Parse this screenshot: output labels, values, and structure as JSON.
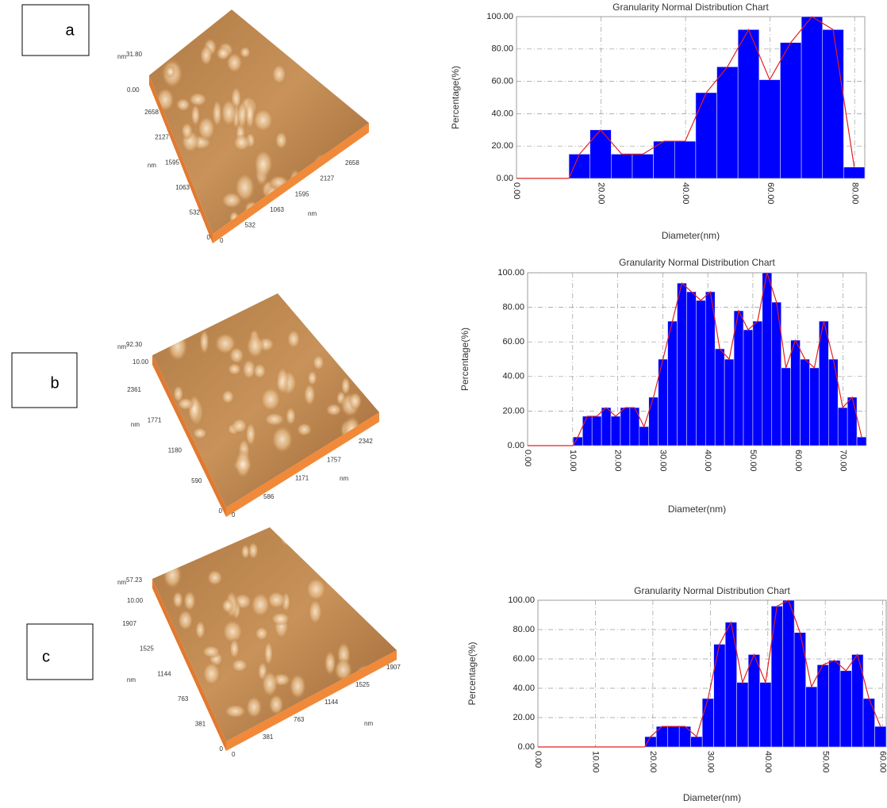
{
  "panels": [
    {
      "label": "a",
      "afm": {
        "z_unit": "nm",
        "z_max": "31.80",
        "z_min": "0.00",
        "y_ticks": [
          "2658",
          "2127",
          "1595",
          "1063",
          "532",
          "0"
        ],
        "y_unit": "nm",
        "x_ticks": [
          "0",
          "532",
          "1063",
          "1595",
          "2127",
          "2658"
        ],
        "x_unit": "nm"
      }
    },
    {
      "label": "b",
      "afm": {
        "z_unit": "nm",
        "z_max": "92.30",
        "z_min": "10.00",
        "y_ticks": [
          "2361",
          "1771",
          "1180",
          "590",
          "0"
        ],
        "y_unit": "nm",
        "x_ticks": [
          "0",
          "586",
          "1171",
          "1757",
          "2342"
        ],
        "x_unit": "nm"
      }
    },
    {
      "label": "c",
      "afm": {
        "z_unit": "nm",
        "z_max": "57.23",
        "z_min": "10.00",
        "y_ticks": [
          "1907",
          "1525",
          "1144",
          "763",
          "381",
          "0"
        ],
        "y_unit": "nm",
        "x_ticks": [
          "0",
          "381",
          "763",
          "1144",
          "1525",
          "1907"
        ],
        "x_unit": "nm"
      }
    }
  ],
  "chart_data": [
    {
      "type": "histogram",
      "title": "Granularity Normal Distribution  Chart",
      "x_label": "Diameter(nm)",
      "y_label": "Percentage(%)",
      "bins": [
        12.4,
        17.4,
        22.4,
        27.4,
        32.4,
        37.4,
        42.4,
        47.4,
        52.4,
        57.4,
        62.4,
        67.4,
        72.4,
        77.4,
        82.4
      ],
      "counts": [
        15,
        30,
        15,
        15,
        23,
        23,
        53,
        69,
        92,
        61,
        84,
        100,
        92,
        7
      ],
      "bar_color": "#0000ff",
      "line_color": "#e02020",
      "grid": true,
      "xlim": [
        0,
        82.4
      ],
      "xticks": [
        {
          "value": 0,
          "label": "0.00"
        },
        {
          "value": 20,
          "label": "20.00"
        },
        {
          "value": 40,
          "label": "40.00"
        },
        {
          "value": 60,
          "label": "60.00"
        },
        {
          "value": 80,
          "label": "80.00"
        }
      ],
      "ylim": [
        0,
        100
      ],
      "yticks": [
        {
          "value": 0,
          "label": "0.00"
        },
        {
          "value": 20,
          "label": "20.00"
        },
        {
          "value": 40,
          "label": "40.00"
        },
        {
          "value": 60,
          "label": "60.00"
        },
        {
          "value": 80,
          "label": "80.00"
        },
        {
          "value": 100,
          "label": "100.00"
        }
      ]
    },
    {
      "type": "histogram",
      "title": "Granularity Normal Distribution  Chart",
      "x_label": "Diameter(nm)",
      "y_label": "Percentage(%)",
      "bins": [
        10.1,
        12.2,
        14.3,
        16.4,
        18.5,
        20.6,
        22.7,
        24.8,
        26.9,
        29.0,
        31.1,
        33.2,
        35.3,
        37.4,
        39.5,
        41.6,
        43.7,
        45.8,
        47.9,
        50.0,
        52.1,
        54.2,
        56.3,
        58.4,
        60.5,
        62.6,
        64.7,
        66.8,
        68.9,
        71.0,
        73.1,
        75.2
      ],
      "counts": [
        5,
        17,
        17,
        22,
        17,
        22,
        22,
        11,
        28,
        50,
        72,
        94,
        89,
        84,
        89,
        56,
        50,
        78,
        67,
        72,
        100,
        83,
        45,
        61,
        50,
        45,
        72,
        50,
        22,
        28,
        5
      ],
      "bar_color": "#0000ff",
      "line_color": "#e02020",
      "grid": true,
      "xlim": [
        0,
        75.2
      ],
      "xticks": [
        {
          "value": 0,
          "label": "0.00"
        },
        {
          "value": 10,
          "label": "10.00"
        },
        {
          "value": 20,
          "label": "20.00"
        },
        {
          "value": 30,
          "label": "30.00"
        },
        {
          "value": 40,
          "label": "40.00"
        },
        {
          "value": 50,
          "label": "50.00"
        },
        {
          "value": 60,
          "label": "60.00"
        },
        {
          "value": 70,
          "label": "70.00"
        }
      ],
      "ylim": [
        0,
        100
      ],
      "yticks": [
        {
          "value": 0,
          "label": "0.00"
        },
        {
          "value": 20,
          "label": "20.00"
        },
        {
          "value": 40,
          "label": "40.00"
        },
        {
          "value": 60,
          "label": "60.00"
        },
        {
          "value": 80,
          "label": "80.00"
        },
        {
          "value": 100,
          "label": "100.00"
        }
      ]
    },
    {
      "type": "histogram",
      "title": "Granularity Normal Distribution  Chart",
      "x_label": "Diameter(nm)",
      "y_label": "Percentage(%)",
      "bins": [
        18.6,
        20.6,
        22.6,
        24.6,
        26.6,
        28.6,
        30.6,
        32.6,
        34.6,
        36.6,
        38.6,
        40.6,
        42.6,
        44.6,
        46.6,
        48.6,
        50.6,
        52.6,
        54.6,
        56.6,
        58.6,
        60.6
      ],
      "counts": [
        7,
        14,
        14,
        14,
        7,
        33,
        70,
        85,
        44,
        63,
        44,
        96,
        100,
        78,
        41,
        56,
        59,
        52,
        63,
        33,
        14
      ],
      "bar_color": "#0000ff",
      "line_color": "#e02020",
      "grid": true,
      "xlim": [
        0,
        60.6
      ],
      "xticks": [
        {
          "value": 0,
          "label": "0.00"
        },
        {
          "value": 10,
          "label": "10.00"
        },
        {
          "value": 20,
          "label": "20.00"
        },
        {
          "value": 30,
          "label": "30.00"
        },
        {
          "value": 40,
          "label": "40.00"
        },
        {
          "value": 50,
          "label": "50.00"
        },
        {
          "value": 60,
          "label": "60.00"
        }
      ],
      "ylim": [
        0,
        100
      ],
      "yticks": [
        {
          "value": 0,
          "label": "0.00"
        },
        {
          "value": 20,
          "label": "20.00"
        },
        {
          "value": 40,
          "label": "40.00"
        },
        {
          "value": 60,
          "label": "60.00"
        },
        {
          "value": 80,
          "label": "80.00"
        },
        {
          "value": 100,
          "label": "100.00"
        }
      ]
    }
  ]
}
